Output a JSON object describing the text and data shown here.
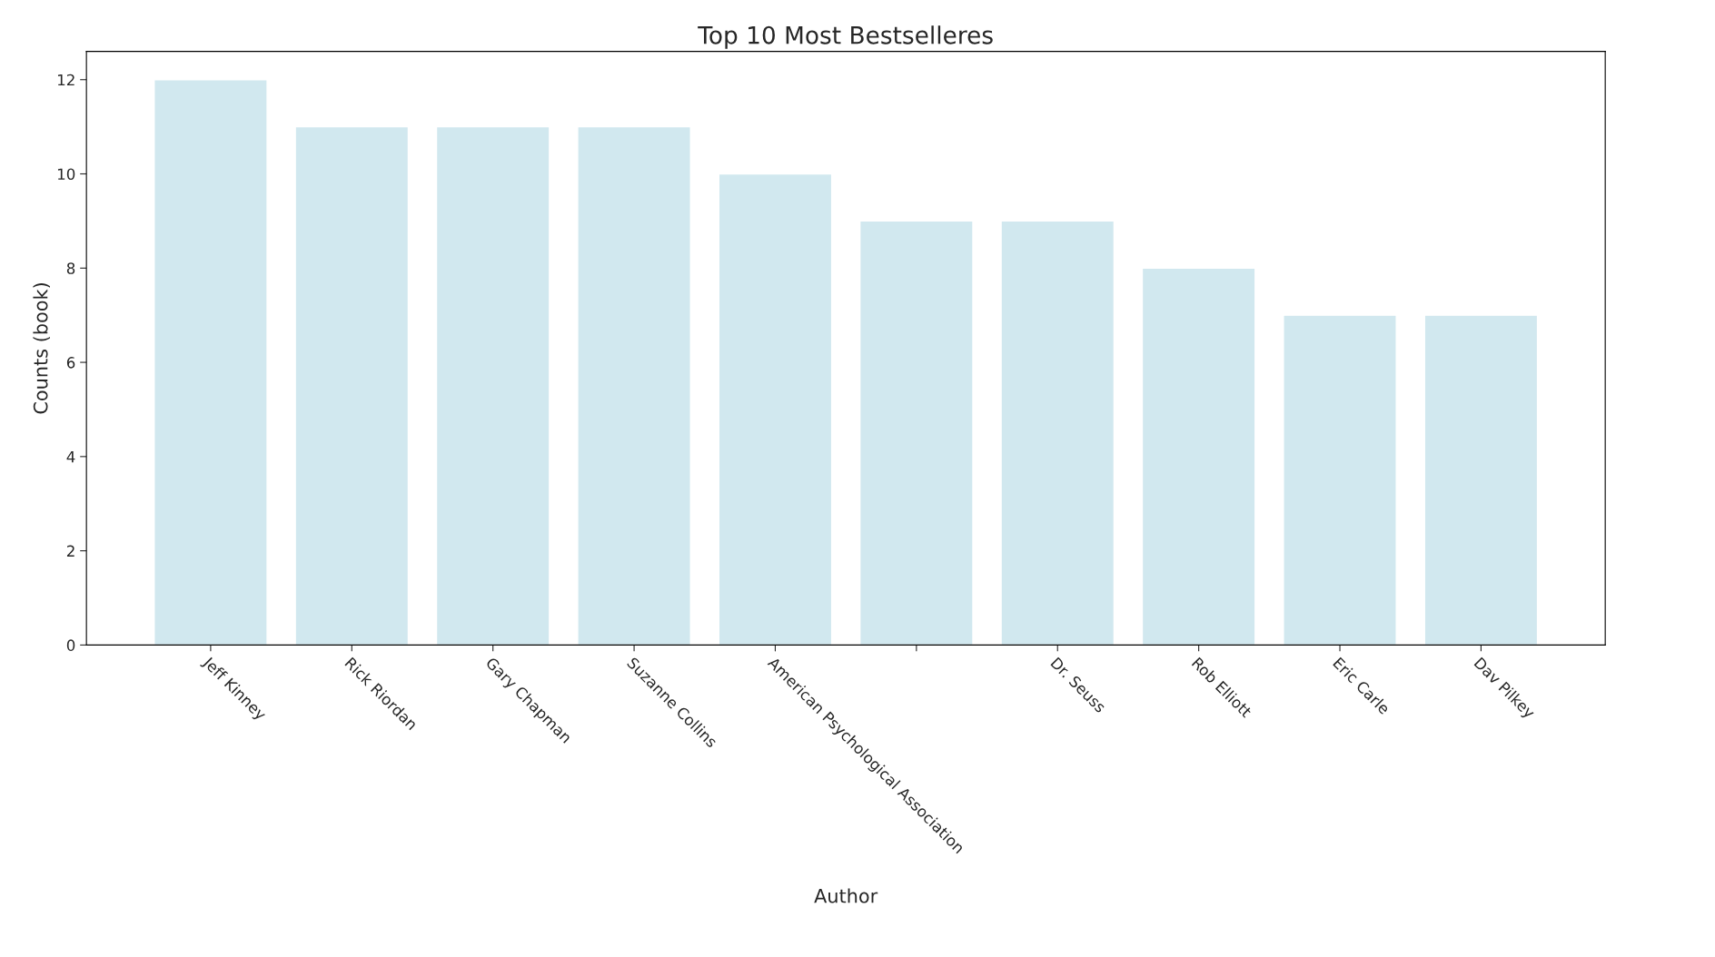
{
  "chart_data": {
    "type": "bar",
    "title": "Top 10 Most Bestselleres",
    "xlabel": "Author",
    "ylabel": "Counts (book)",
    "categories": [
      "Jeff Kinney",
      "Rick Riordan",
      "Gary Chapman",
      "Suzanne Collins",
      "American Psychological Association",
      null,
      "Dr. Seuss",
      "Rob Elliott",
      "Eric Carle",
      "Dav Pilkey"
    ],
    "values": [
      12,
      11,
      11,
      11,
      10,
      9,
      9,
      8,
      7,
      7
    ],
    "color": "#d1e8ef",
    "ylim": [
      0,
      12.6
    ],
    "yticks": [
      0,
      2,
      4,
      6,
      8,
      10,
      12
    ],
    "grid": false,
    "legend": false
  }
}
